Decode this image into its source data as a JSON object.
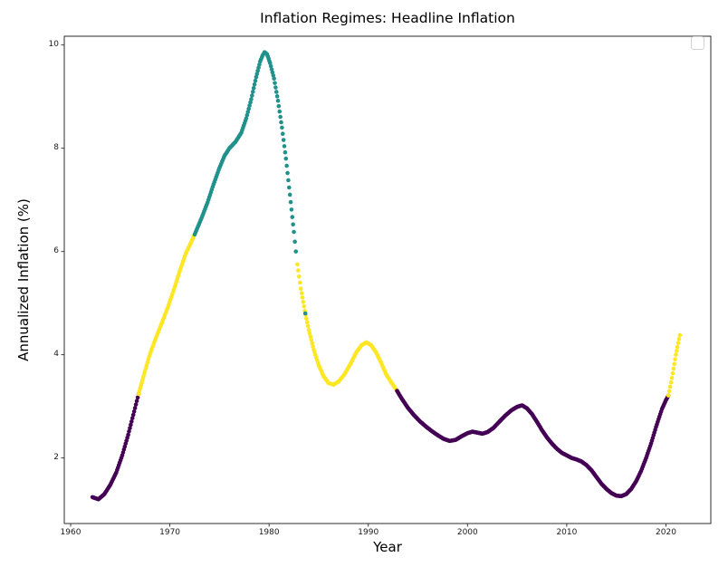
{
  "chart_data": {
    "type": "scatter",
    "title": "Inflation Regimes: Headline Inflation",
    "xlabel": "Year",
    "ylabel": "Annualized Inflation (%)",
    "xlim": [
      1959.36,
      2024.52
    ],
    "ylim": [
      0.73,
      10.17
    ],
    "xticks": [
      1960,
      1970,
      1980,
      1990,
      2000,
      2010,
      2020
    ],
    "yticks": [
      2,
      4,
      6,
      8,
      10
    ],
    "grid": false,
    "legend": {
      "position": "upper-right",
      "entries": []
    },
    "marker_diameter_px": 4.6,
    "sampling": "monthly-dots",
    "regime_palette": {
      "0": "#440154",
      "1": "#fde725",
      "2": "#21918c"
    },
    "segments": [
      {
        "regime": 0,
        "color": "#440154",
        "points": [
          [
            1962.2,
            1.24
          ],
          [
            1962.8,
            1.2
          ],
          [
            1963.4,
            1.3
          ],
          [
            1964.0,
            1.48
          ],
          [
            1964.6,
            1.72
          ],
          [
            1965.2,
            2.05
          ],
          [
            1965.8,
            2.45
          ],
          [
            1966.4,
            2.9
          ],
          [
            1966.85,
            3.24
          ]
        ]
      },
      {
        "regime": 1,
        "color": "#fde725",
        "points": [
          [
            1966.85,
            3.24
          ],
          [
            1967.4,
            3.62
          ],
          [
            1968.0,
            4.02
          ],
          [
            1968.6,
            4.33
          ],
          [
            1969.2,
            4.62
          ],
          [
            1969.8,
            4.92
          ],
          [
            1970.4,
            5.26
          ],
          [
            1971.0,
            5.62
          ],
          [
            1971.6,
            5.96
          ],
          [
            1972.1,
            6.16
          ],
          [
            1972.5,
            6.33
          ]
        ]
      },
      {
        "regime": 2,
        "color": "#21918c",
        "points": [
          [
            1972.5,
            6.33
          ],
          [
            1973.2,
            6.65
          ],
          [
            1973.8,
            6.95
          ],
          [
            1974.4,
            7.3
          ],
          [
            1975.0,
            7.62
          ],
          [
            1975.5,
            7.85
          ],
          [
            1976.0,
            8.0
          ],
          [
            1976.6,
            8.12
          ],
          [
            1977.2,
            8.3
          ],
          [
            1977.7,
            8.58
          ],
          [
            1978.2,
            8.95
          ],
          [
            1978.7,
            9.38
          ],
          [
            1979.1,
            9.68
          ],
          [
            1979.35,
            9.8
          ],
          [
            1979.55,
            9.86
          ],
          [
            1979.8,
            9.82
          ],
          [
            1980.1,
            9.65
          ],
          [
            1980.5,
            9.35
          ],
          [
            1980.9,
            8.92
          ],
          [
            1981.3,
            8.4
          ],
          [
            1981.7,
            7.8
          ],
          [
            1982.1,
            7.1
          ],
          [
            1982.5,
            6.38
          ],
          [
            1982.7,
            6.0
          ]
        ]
      },
      {
        "regime": 1,
        "color": "#fde725",
        "points": [
          [
            1982.85,
            5.75
          ],
          [
            1983.2,
            5.28
          ],
          [
            1983.6,
            4.85
          ],
          [
            1984.0,
            4.48
          ],
          [
            1984.5,
            4.1
          ],
          [
            1985.0,
            3.8
          ],
          [
            1985.5,
            3.58
          ],
          [
            1986.0,
            3.45
          ],
          [
            1986.5,
            3.42
          ],
          [
            1987.0,
            3.48
          ],
          [
            1987.6,
            3.62
          ],
          [
            1988.2,
            3.82
          ],
          [
            1988.8,
            4.05
          ],
          [
            1989.3,
            4.18
          ],
          [
            1989.8,
            4.24
          ],
          [
            1990.3,
            4.18
          ],
          [
            1990.8,
            4.04
          ],
          [
            1991.3,
            3.84
          ],
          [
            1991.8,
            3.62
          ],
          [
            1992.4,
            3.44
          ],
          [
            1992.9,
            3.3
          ]
        ]
      },
      {
        "regime": 0,
        "color": "#440154",
        "points": [
          [
            1992.9,
            3.3
          ],
          [
            1993.4,
            3.14
          ],
          [
            1994.0,
            2.97
          ],
          [
            1994.6,
            2.83
          ],
          [
            1995.2,
            2.71
          ],
          [
            1995.8,
            2.61
          ],
          [
            1996.4,
            2.52
          ],
          [
            1997.0,
            2.44
          ],
          [
            1997.6,
            2.37
          ],
          [
            1998.2,
            2.33
          ],
          [
            1998.8,
            2.35
          ],
          [
            1999.4,
            2.42
          ],
          [
            2000.0,
            2.48
          ],
          [
            2000.5,
            2.51
          ],
          [
            2001.0,
            2.49
          ],
          [
            2001.5,
            2.47
          ],
          [
            2002.0,
            2.5
          ],
          [
            2002.6,
            2.58
          ],
          [
            2003.2,
            2.7
          ],
          [
            2003.8,
            2.82
          ],
          [
            2004.4,
            2.92
          ],
          [
            2005.0,
            2.99
          ],
          [
            2005.5,
            3.02
          ],
          [
            2006.0,
            2.96
          ],
          [
            2006.5,
            2.85
          ],
          [
            2007.0,
            2.7
          ],
          [
            2007.5,
            2.54
          ],
          [
            2008.0,
            2.4
          ],
          [
            2008.5,
            2.28
          ],
          [
            2009.0,
            2.18
          ],
          [
            2009.5,
            2.1
          ],
          [
            2010.0,
            2.05
          ],
          [
            2010.5,
            2.0
          ],
          [
            2011.0,
            1.97
          ],
          [
            2011.5,
            1.93
          ],
          [
            2012.0,
            1.86
          ],
          [
            2012.5,
            1.76
          ],
          [
            2013.0,
            1.63
          ],
          [
            2013.5,
            1.5
          ],
          [
            2014.0,
            1.4
          ],
          [
            2014.5,
            1.32
          ],
          [
            2015.0,
            1.27
          ],
          [
            2015.5,
            1.26
          ],
          [
            2016.0,
            1.3
          ],
          [
            2016.5,
            1.4
          ],
          [
            2017.0,
            1.55
          ],
          [
            2017.5,
            1.75
          ],
          [
            2018.0,
            2.0
          ],
          [
            2018.5,
            2.28
          ],
          [
            2019.0,
            2.6
          ],
          [
            2019.6,
            2.95
          ],
          [
            2020.0,
            3.12
          ],
          [
            2020.25,
            3.21
          ]
        ]
      },
      {
        "regime": 1,
        "color": "#fde725",
        "points": [
          [
            2020.25,
            3.21
          ],
          [
            2020.6,
            3.55
          ],
          [
            2021.0,
            4.0
          ],
          [
            2021.4,
            4.38
          ]
        ]
      }
    ],
    "stray_points": [
      {
        "regime": 2,
        "color": "#21918c",
        "year": 1983.65,
        "value": 4.8
      }
    ]
  }
}
